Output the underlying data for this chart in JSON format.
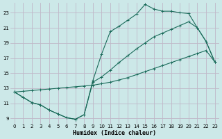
{
  "xlabel": "Humidex (Indice chaleur)",
  "xlim": [
    -0.5,
    23.5
  ],
  "ylim": [
    8.3,
    24.3
  ],
  "xticks": [
    0,
    1,
    2,
    3,
    4,
    5,
    6,
    7,
    8,
    9,
    10,
    11,
    12,
    13,
    14,
    15,
    16,
    17,
    18,
    19,
    20,
    21,
    22,
    23
  ],
  "yticks": [
    9,
    11,
    13,
    15,
    17,
    19,
    21,
    23
  ],
  "bg_color": "#cce8e8",
  "grid_color": "#c0b8c8",
  "line_color": "#1a6b5a",
  "line1_x": [
    0,
    1,
    2,
    3,
    4,
    5,
    6,
    7,
    8,
    9,
    10,
    11,
    12,
    13,
    14,
    15,
    16,
    17,
    18,
    19,
    20,
    21,
    22,
    23
  ],
  "line1_y": [
    12.5,
    11.8,
    11.1,
    10.8,
    10.1,
    9.6,
    9.1,
    8.9,
    9.5,
    14.0,
    17.5,
    20.5,
    21.2,
    22.0,
    22.8,
    24.1,
    23.5,
    23.2,
    23.2,
    23.0,
    22.9,
    21.0,
    19.2,
    16.5
  ],
  "line2_x": [
    0,
    1,
    2,
    3,
    4,
    5,
    6,
    7,
    8,
    9,
    10,
    11,
    12,
    13,
    14,
    15,
    16,
    17,
    18,
    19,
    20,
    21,
    22,
    23
  ],
  "line2_y": [
    12.5,
    11.8,
    11.1,
    10.8,
    10.1,
    9.6,
    9.1,
    8.9,
    9.5,
    13.8,
    14.5,
    15.4,
    16.4,
    17.3,
    18.2,
    19.0,
    19.8,
    20.3,
    20.8,
    21.3,
    21.8,
    21.0,
    19.2,
    16.5
  ],
  "line3_x": [
    0,
    1,
    2,
    3,
    4,
    5,
    6,
    7,
    8,
    9,
    10,
    11,
    12,
    13,
    14,
    15,
    16,
    17,
    18,
    19,
    20,
    21,
    22,
    23
  ],
  "line3_y": [
    12.5,
    12.6,
    12.7,
    12.8,
    12.9,
    13.0,
    13.1,
    13.2,
    13.3,
    13.4,
    13.6,
    13.8,
    14.1,
    14.4,
    14.8,
    15.2,
    15.6,
    16.0,
    16.4,
    16.8,
    17.2,
    17.6,
    18.0,
    16.5
  ]
}
